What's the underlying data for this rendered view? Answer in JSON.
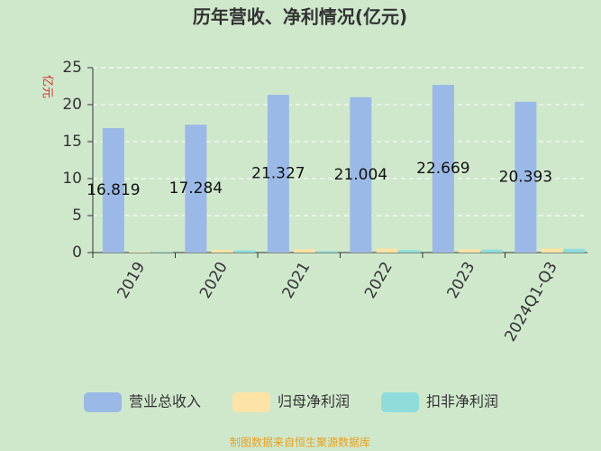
{
  "chart_data": {
    "type": "bar",
    "title": "历年营收、净利情况(亿元)",
    "y_label": "亿元",
    "categories": [
      "2019",
      "2020",
      "2021",
      "2022",
      "2023",
      "2024Q1-Q3"
    ],
    "series": [
      {
        "name": "营业总收入",
        "color": "#9bb9e6",
        "values": [
          16.819,
          17.284,
          21.327,
          21.004,
          22.669,
          20.393
        ]
      },
      {
        "name": "归母净利润",
        "color": "#fde3a6",
        "values": [
          0.1,
          0.35,
          0.45,
          0.55,
          0.45,
          0.55
        ]
      },
      {
        "name": "扣非净利润",
        "color": "#8fdcdc",
        "values": [
          0.05,
          0.3,
          0.2,
          0.35,
          0.4,
          0.5
        ]
      }
    ],
    "ylim": [
      0,
      25
    ],
    "yticks": [
      0,
      5,
      10,
      15,
      20,
      25
    ],
    "grid": true,
    "footer": "制图数据来自恒生聚源数据库"
  }
}
